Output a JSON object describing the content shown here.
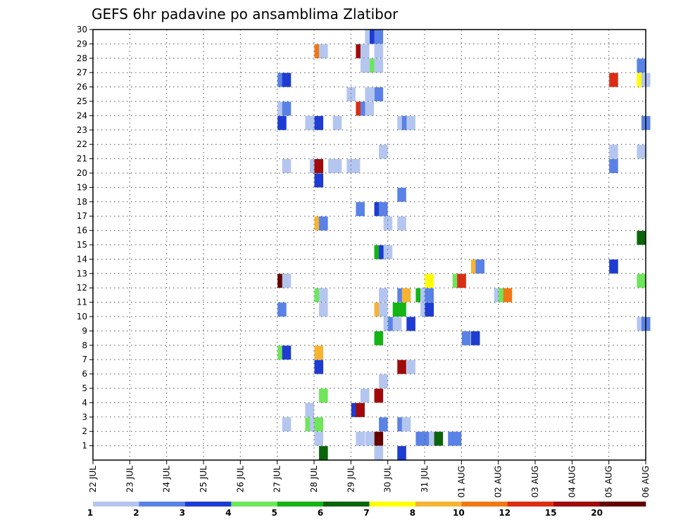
{
  "chart_data": {
    "type": "heatmap",
    "title": "GEFS 6hr padavine po ansamblima Zlatibor",
    "xlabel": "",
    "ylabel": "",
    "x_ticks": [
      "22 JUL",
      "23 JUL",
      "24 JUL",
      "25 JUL",
      "26 JUL",
      "27 JUL",
      "28 JUL",
      "29 JUL",
      "30 JUL",
      "31 JUL",
      "01 AUG",
      "02 AUG",
      "03 AUG",
      "04 AUG",
      "05 AUG",
      "06 AUG"
    ],
    "x_range": [
      0,
      15
    ],
    "x_step_days": 0.25,
    "y_ticks": [
      1,
      2,
      3,
      4,
      5,
      6,
      7,
      8,
      9,
      10,
      11,
      12,
      13,
      14,
      15,
      16,
      17,
      18,
      19,
      20,
      21,
      22,
      23,
      24,
      25,
      26,
      27,
      28,
      29,
      30
    ],
    "y_range": [
      0,
      30
    ],
    "grid": true,
    "legend": {
      "placement": "bottom",
      "labels": [
        "1",
        "2",
        "3",
        "4",
        "5",
        "6",
        "7",
        "8",
        "10",
        "12",
        "15",
        "20"
      ],
      "colors": [
        "#b4c6f0",
        "#5a82e6",
        "#1e3cd2",
        "#6ee65a",
        "#14b414",
        "#0a640a",
        "#ffff00",
        "#f5b432",
        "#f07814",
        "#dc2d14",
        "#a00a0a",
        "#640000"
      ]
    },
    "cells": [
      {
        "x": 15.0,
        "y": 30,
        "c": 0
      },
      {
        "x": 15.25,
        "y": 30,
        "c": 2
      },
      {
        "x": 15.5,
        "y": 30,
        "c": 1
      },
      {
        "x": 12.25,
        "y": 29,
        "c": 8
      },
      {
        "x": 12.5,
        "y": 29,
        "c": 0
      },
      {
        "x": 14.5,
        "y": 29,
        "c": 10
      },
      {
        "x": 14.75,
        "y": 29,
        "c": 0
      },
      {
        "x": 15.5,
        "y": 29,
        "c": 0
      },
      {
        "x": 14.75,
        "y": 28,
        "c": 0
      },
      {
        "x": 15.0,
        "y": 28,
        "c": 0
      },
      {
        "x": 15.25,
        "y": 28,
        "c": 3
      },
      {
        "x": 15.5,
        "y": 28,
        "c": 0
      },
      {
        "x": 29.75,
        "y": 28,
        "c": 1
      },
      {
        "x": 10.25,
        "y": 27,
        "c": 1
      },
      {
        "x": 10.5,
        "y": 27,
        "c": 2
      },
      {
        "x": 28.25,
        "y": 27,
        "c": 9
      },
      {
        "x": 29.75,
        "y": 27,
        "c": 6
      },
      {
        "x": 30.0,
        "y": 27,
        "c": 0
      },
      {
        "x": 14.0,
        "y": 26,
        "c": 0
      },
      {
        "x": 15.0,
        "y": 26,
        "c": 0
      },
      {
        "x": 15.5,
        "y": 26,
        "c": 1
      },
      {
        "x": 10.25,
        "y": 25,
        "c": 0
      },
      {
        "x": 10.5,
        "y": 25,
        "c": 1
      },
      {
        "x": 14.5,
        "y": 25,
        "c": 9
      },
      {
        "x": 14.75,
        "y": 25,
        "c": 1
      },
      {
        "x": 15.0,
        "y": 25,
        "c": 0
      },
      {
        "x": 10.25,
        "y": 24,
        "c": 2
      },
      {
        "x": 11.75,
        "y": 24,
        "c": 0
      },
      {
        "x": 12.25,
        "y": 24,
        "c": 2
      },
      {
        "x": 13.25,
        "y": 24,
        "c": 0
      },
      {
        "x": 16.75,
        "y": 24,
        "c": 0
      },
      {
        "x": 17.0,
        "y": 24,
        "c": 1
      },
      {
        "x": 17.25,
        "y": 24,
        "c": 0
      },
      {
        "x": 30.0,
        "y": 24,
        "c": 1
      },
      {
        "x": 15.75,
        "y": 22,
        "c": 0
      },
      {
        "x": 28.25,
        "y": 22,
        "c": 0
      },
      {
        "x": 29.75,
        "y": 22,
        "c": 0
      },
      {
        "x": 10.5,
        "y": 21,
        "c": 0
      },
      {
        "x": 12.0,
        "y": 21,
        "c": 0
      },
      {
        "x": 12.25,
        "y": 21,
        "c": 10
      },
      {
        "x": 13.0,
        "y": 21,
        "c": 0
      },
      {
        "x": 13.25,
        "y": 21,
        "c": 0
      },
      {
        "x": 14.0,
        "y": 21,
        "c": 0
      },
      {
        "x": 14.25,
        "y": 21,
        "c": 0
      },
      {
        "x": 28.25,
        "y": 21,
        "c": 1
      },
      {
        "x": 12.25,
        "y": 20,
        "c": 2
      },
      {
        "x": 16.75,
        "y": 19,
        "c": 1
      },
      {
        "x": 14.5,
        "y": 18,
        "c": 1
      },
      {
        "x": 15.5,
        "y": 18,
        "c": 2
      },
      {
        "x": 15.75,
        "y": 18,
        "c": 1
      },
      {
        "x": 12.25,
        "y": 17,
        "c": 7
      },
      {
        "x": 12.5,
        "y": 17,
        "c": 1
      },
      {
        "x": 16.0,
        "y": 17,
        "c": 0
      },
      {
        "x": 16.75,
        "y": 17,
        "c": 0
      },
      {
        "x": 29.75,
        "y": 16,
        "c": 5
      },
      {
        "x": 15.5,
        "y": 15,
        "c": 4
      },
      {
        "x": 15.75,
        "y": 15,
        "c": 2
      },
      {
        "x": 16.0,
        "y": 15,
        "c": 0
      },
      {
        "x": 20.75,
        "y": 14,
        "c": 7
      },
      {
        "x": 21.0,
        "y": 14,
        "c": 1
      },
      {
        "x": 28.25,
        "y": 14,
        "c": 2
      },
      {
        "x": 10.25,
        "y": 13,
        "c": 11
      },
      {
        "x": 10.5,
        "y": 13,
        "c": 0
      },
      {
        "x": 18.25,
        "y": 13,
        "c": 6
      },
      {
        "x": 19.75,
        "y": 13,
        "c": 3
      },
      {
        "x": 20.0,
        "y": 13,
        "c": 9
      },
      {
        "x": 29.75,
        "y": 13,
        "c": 3
      },
      {
        "x": 12.25,
        "y": 12,
        "c": 3
      },
      {
        "x": 12.5,
        "y": 12,
        "c": 0
      },
      {
        "x": 15.75,
        "y": 12,
        "c": 0
      },
      {
        "x": 16.75,
        "y": 12,
        "c": 1
      },
      {
        "x": 17.0,
        "y": 12,
        "c": 7
      },
      {
        "x": 17.75,
        "y": 12,
        "c": 4
      },
      {
        "x": 18.0,
        "y": 12,
        "c": 0
      },
      {
        "x": 18.25,
        "y": 12,
        "c": 1
      },
      {
        "x": 22.0,
        "y": 12,
        "c": 0
      },
      {
        "x": 22.25,
        "y": 12,
        "c": 3
      },
      {
        "x": 22.5,
        "y": 12,
        "c": 8
      },
      {
        "x": 10.25,
        "y": 11,
        "c": 1
      },
      {
        "x": 12.5,
        "y": 11,
        "c": 0
      },
      {
        "x": 15.5,
        "y": 11,
        "c": 7
      },
      {
        "x": 15.75,
        "y": 11,
        "c": 0
      },
      {
        "x": 16.5,
        "y": 11,
        "c": 4
      },
      {
        "x": 16.75,
        "y": 11,
        "c": 4
      },
      {
        "x": 18.0,
        "y": 11,
        "c": 0
      },
      {
        "x": 18.25,
        "y": 11,
        "c": 2
      },
      {
        "x": 16.0,
        "y": 10,
        "c": 0
      },
      {
        "x": 16.25,
        "y": 10,
        "c": 1
      },
      {
        "x": 16.5,
        "y": 10,
        "c": 0
      },
      {
        "x": 17.25,
        "y": 10,
        "c": 2
      },
      {
        "x": 29.75,
        "y": 10,
        "c": 0
      },
      {
        "x": 30.0,
        "y": 10,
        "c": 1
      },
      {
        "x": 15.5,
        "y": 9,
        "c": 4
      },
      {
        "x": 20.25,
        "y": 9,
        "c": 1
      },
      {
        "x": 20.75,
        "y": 9,
        "c": 2
      },
      {
        "x": 10.25,
        "y": 8,
        "c": 3
      },
      {
        "x": 10.5,
        "y": 8,
        "c": 2
      },
      {
        "x": 12.25,
        "y": 8,
        "c": 7
      },
      {
        "x": 12.25,
        "y": 7,
        "c": 2
      },
      {
        "x": 16.75,
        "y": 7,
        "c": 10
      },
      {
        "x": 17.25,
        "y": 7,
        "c": 0
      },
      {
        "x": 15.75,
        "y": 6,
        "c": 0
      },
      {
        "x": 12.5,
        "y": 5,
        "c": 3
      },
      {
        "x": 14.75,
        "y": 5,
        "c": 0
      },
      {
        "x": 15.5,
        "y": 5,
        "c": 10
      },
      {
        "x": 11.75,
        "y": 4,
        "c": 0
      },
      {
        "x": 14.25,
        "y": 4,
        "c": 2
      },
      {
        "x": 14.5,
        "y": 4,
        "c": 10
      },
      {
        "x": 10.5,
        "y": 3,
        "c": 0
      },
      {
        "x": 11.75,
        "y": 3,
        "c": 3
      },
      {
        "x": 12.0,
        "y": 3,
        "c": 0
      },
      {
        "x": 12.25,
        "y": 3,
        "c": 3
      },
      {
        "x": 15.75,
        "y": 3,
        "c": 1
      },
      {
        "x": 16.75,
        "y": 3,
        "c": 1
      },
      {
        "x": 17.0,
        "y": 3,
        "c": 0
      },
      {
        "x": 12.25,
        "y": 2,
        "c": 0
      },
      {
        "x": 14.5,
        "y": 2,
        "c": 0
      },
      {
        "x": 15.0,
        "y": 2,
        "c": 0
      },
      {
        "x": 15.5,
        "y": 2,
        "c": 11
      },
      {
        "x": 17.75,
        "y": 2,
        "c": 1
      },
      {
        "x": 18.0,
        "y": 2,
        "c": 1
      },
      {
        "x": 18.5,
        "y": 2,
        "c": 0
      },
      {
        "x": 18.75,
        "y": 2,
        "c": 5
      },
      {
        "x": 19.5,
        "y": 2,
        "c": 1
      },
      {
        "x": 19.75,
        "y": 2,
        "c": 1
      },
      {
        "x": 12.5,
        "y": 1,
        "c": 5
      },
      {
        "x": 15.5,
        "y": 1,
        "c": 0
      },
      {
        "x": 16.75,
        "y": 1,
        "c": 2
      }
    ]
  }
}
